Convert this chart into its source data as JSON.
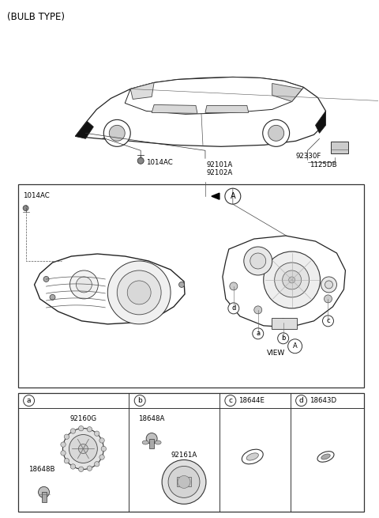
{
  "bg_color": "#ffffff",
  "line_color": "#222222",
  "fig_width": 4.8,
  "fig_height": 6.55,
  "dpi": 100,
  "title": "(BULB TYPE)",
  "labels": {
    "1014AC_top": "1014AC",
    "92101A": "92101A",
    "92102A": "92102A",
    "1125DB": "1125DB",
    "92330F": "92330F",
    "1014AC_box": "1014AC",
    "92160G": "92160G",
    "18648B": "18648B",
    "18648A": "18648A",
    "92161A": "92161A",
    "18644E": "18644E",
    "18643D": "18643D"
  }
}
